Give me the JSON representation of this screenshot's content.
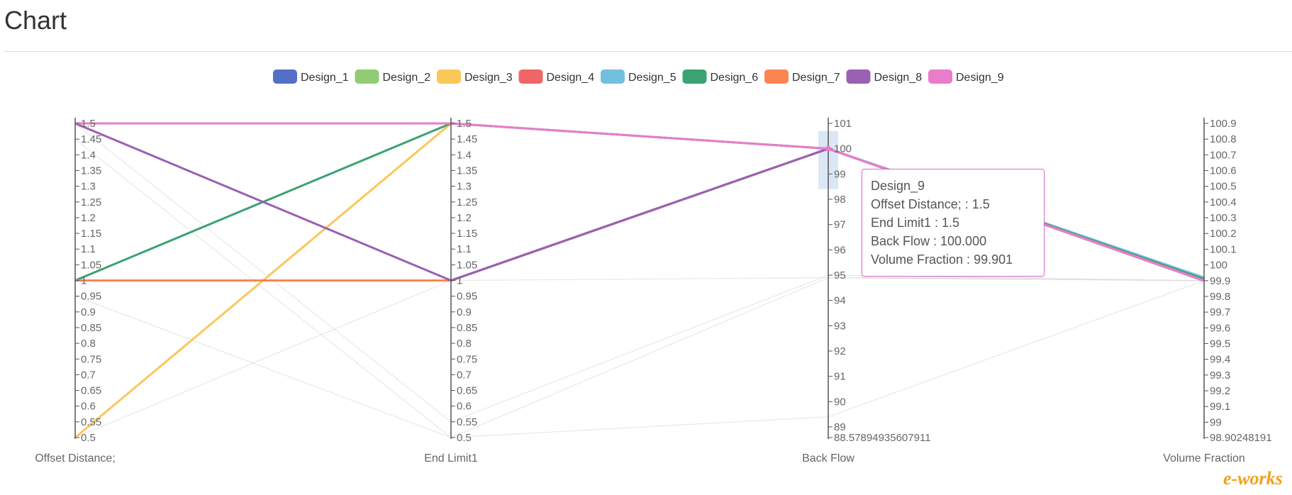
{
  "page": {
    "title": "Chart"
  },
  "tooltip": {
    "series": "Design_9",
    "line1": "Offset Distance; : 1.5",
    "line2": "End Limit1 : 1.5",
    "line3": "Back Flow : 100.000",
    "line4": "Volume Fraction : 99.901"
  },
  "watermark": {
    "text": "e-works"
  },
  "chart_data": {
    "type": "parallel",
    "title": "",
    "axes": [
      {
        "name": "Offset Distance;",
        "min": 0.5,
        "max": 1.5,
        "ticks": [
          "0.5",
          "0.55",
          "0.6",
          "0.65",
          "0.7",
          "0.75",
          "0.8",
          "0.85",
          "0.9",
          "0.95",
          "1",
          "1.05",
          "1.1",
          "1.15",
          "1.2",
          "1.25",
          "1.3",
          "1.35",
          "1.4",
          "1.45",
          "1.5"
        ]
      },
      {
        "name": "End Limit1",
        "min": 0.5,
        "max": 1.5,
        "ticks": [
          "0.5",
          "0.55",
          "0.6",
          "0.65",
          "0.7",
          "0.75",
          "0.8",
          "0.85",
          "0.9",
          "0.95",
          "1",
          "1.05",
          "1.1",
          "1.15",
          "1.2",
          "1.25",
          "1.3",
          "1.35",
          "1.4",
          "1.45",
          "1.5"
        ]
      },
      {
        "name": "Back Flow",
        "min": 88.57894935607911,
        "max": 101,
        "ticks": [
          "88.57894935607911",
          "89",
          "90",
          "91",
          "92",
          "93",
          "94",
          "95",
          "96",
          "97",
          "98",
          "99",
          "100",
          "101"
        ]
      },
      {
        "name": "Volume Fraction",
        "min": 98.90248191,
        "max": 100.9,
        "ticks": [
          "98.90248191",
          "99",
          "99.1",
          "99.2",
          "99.3",
          "99.4",
          "99.5",
          "99.6",
          "99.7",
          "99.8",
          "99.9",
          "100",
          "100.1",
          "100.2",
          "100.3",
          "100.4",
          "100.5",
          "100.6",
          "100.7",
          "100.8",
          "100.9"
        ]
      }
    ],
    "legend_position": "top-center",
    "series": [
      {
        "name": "Design_1",
        "color": "#5470c6",
        "values": [
          1.0,
          1.0,
          100.0,
          99.9
        ]
      },
      {
        "name": "Design_2",
        "color": "#91cc75",
        "values": [
          1.0,
          1.0,
          100.0,
          99.91
        ]
      },
      {
        "name": "Design_3",
        "color": "#fac858",
        "values": [
          0.5,
          1.5,
          100.0,
          99.9
        ]
      },
      {
        "name": "Design_4",
        "color": "#ee6666",
        "values": [
          1.0,
          1.0,
          100.0,
          99.9
        ]
      },
      {
        "name": "Design_5",
        "color": "#73c0de",
        "values": [
          1.0,
          1.0,
          100.0,
          99.92
        ]
      },
      {
        "name": "Design_6",
        "color": "#3ba272",
        "values": [
          1.0,
          1.5,
          100.0,
          99.91
        ]
      },
      {
        "name": "Design_7",
        "color": "#fc8452",
        "values": [
          1.0,
          1.0,
          100.0,
          99.9
        ]
      },
      {
        "name": "Design_8",
        "color": "#9a60b4",
        "values": [
          1.5,
          1.0,
          100.0,
          99.9
        ]
      },
      {
        "name": "Design_9",
        "color": "#ea7ccc",
        "values": [
          1.5,
          1.5,
          100.0,
          99.901
        ]
      }
    ],
    "inactive_lines": [
      [
        1.45,
        0.5,
        94.9,
        99.9
      ],
      [
        0.95,
        0.5,
        89.4,
        99.9
      ],
      [
        0.5,
        1.0,
        94.9,
        99.9
      ],
      [
        1.5,
        0.55,
        95.0,
        99.9
      ]
    ],
    "brush": {
      "axis": "Back Flow",
      "range": [
        98.4,
        100.7
      ]
    }
  }
}
